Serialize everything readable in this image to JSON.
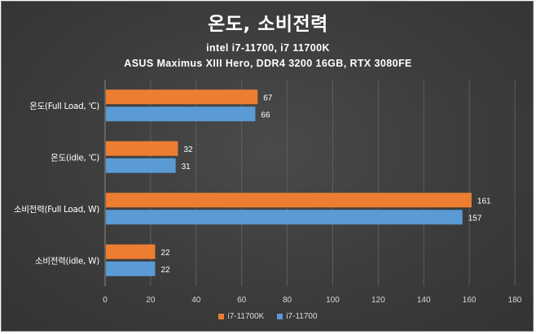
{
  "chart_data": {
    "type": "bar",
    "orientation": "horizontal",
    "title": "온도, 소비전력",
    "subtitle_lines": [
      "intel i7-11700,  i7 11700K",
      "ASUS Maximus XIII Hero, DDR4 3200 16GB, RTX 3080FE"
    ],
    "categories": [
      "온도(Full Load, 'C)",
      "온도(idle, 'C)",
      "소비전력(Full Load, W)",
      "소비전력(idle, W)"
    ],
    "series": [
      {
        "name": "i7-11700K",
        "color": "#ED7D31",
        "values": [
          67,
          32,
          161,
          22
        ]
      },
      {
        "name": "i7-11700",
        "color": "#5B9BD5",
        "values": [
          66,
          31,
          157,
          22
        ]
      }
    ],
    "xlim": [
      0,
      180
    ],
    "xticks": [
      0,
      20,
      40,
      60,
      80,
      100,
      120,
      140,
      160,
      180
    ],
    "xlabel": "",
    "ylabel": "",
    "grid": true,
    "legend_position": "bottom",
    "data_labels": true
  }
}
